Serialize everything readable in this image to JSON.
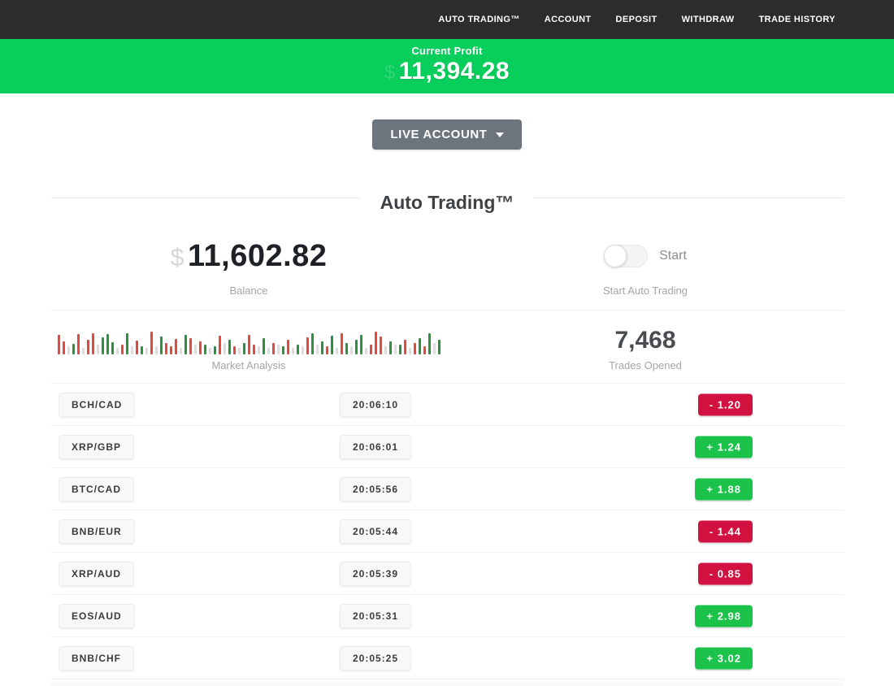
{
  "nav": {
    "items": [
      {
        "id": "auto-trading",
        "label": "AUTO TRADING™"
      },
      {
        "id": "account",
        "label": "ACCOUNT"
      },
      {
        "id": "deposit",
        "label": "DEPOSIT"
      },
      {
        "id": "withdraw",
        "label": "WITHDRAW"
      },
      {
        "id": "trade-history",
        "label": "TRADE HISTORY"
      }
    ]
  },
  "profit_banner": {
    "label": "Current Profit",
    "value": "11,394.28",
    "faint_symbol": "$",
    "bg_color": "#08ce5b"
  },
  "account_button": {
    "label": "LIVE ACCOUNT"
  },
  "section": {
    "title": "Auto Trading™"
  },
  "stats": {
    "balance": {
      "value": "11,602.82",
      "faint_symbol": "$",
      "label": "Balance"
    },
    "auto_trading": {
      "toggle_label": "Start",
      "label": "Start Auto Trading",
      "toggle_on": false
    },
    "market_analysis": {
      "label": "Market Analysis"
    },
    "trades_opened": {
      "value": "7,468",
      "label": "Trades Opened"
    }
  },
  "trades": [
    {
      "pair": "BCH/CAD",
      "time": "20:06:10",
      "result": "-  1.20",
      "direction": "loss"
    },
    {
      "pair": "XRP/GBP",
      "time": "20:06:01",
      "result": "+  1.24",
      "direction": "gain"
    },
    {
      "pair": "BTC/CAD",
      "time": "20:05:56",
      "result": "+  1.88",
      "direction": "gain"
    },
    {
      "pair": "BNB/EUR",
      "time": "20:05:44",
      "result": "-  1.44",
      "direction": "loss"
    },
    {
      "pair": "XRP/AUD",
      "time": "20:05:39",
      "result": "-  0.85",
      "direction": "loss"
    },
    {
      "pair": "EOS/AUD",
      "time": "20:05:31",
      "result": "+  2.98",
      "direction": "gain"
    },
    {
      "pair": "BNB/CHF",
      "time": "20:05:25",
      "result": "+  3.02",
      "direction": "gain"
    }
  ],
  "chart_data": {
    "type": "bar",
    "title": "Market Analysis",
    "description": "decorative candlestick-style activity strip, no axes",
    "color_legend": {
      "r": "#e04a3f",
      "g": "#2e9140",
      "n": "#dcdcdc"
    },
    "height_range": [
      8,
      28
    ],
    "bars": [
      [
        "r",
        24
      ],
      [
        "r",
        16
      ],
      [
        "n",
        10
      ],
      [
        "g",
        13
      ],
      [
        "r",
        25
      ],
      [
        "n",
        8
      ],
      [
        "r",
        18
      ],
      [
        "r",
        26
      ],
      [
        "n",
        12
      ],
      [
        "g",
        21
      ],
      [
        "g",
        25
      ],
      [
        "g",
        15
      ],
      [
        "n",
        8
      ],
      [
        "r",
        12
      ],
      [
        "g",
        26
      ],
      [
        "n",
        10
      ],
      [
        "r",
        17
      ],
      [
        "g",
        10
      ],
      [
        "n",
        8
      ],
      [
        "r",
        28
      ],
      [
        "n",
        10
      ],
      [
        "g",
        22
      ],
      [
        "r",
        14
      ],
      [
        "r",
        10
      ],
      [
        "r",
        19
      ],
      [
        "n",
        8
      ],
      [
        "g",
        24
      ],
      [
        "r",
        20
      ],
      [
        "n",
        12
      ],
      [
        "r",
        16
      ],
      [
        "g",
        12
      ],
      [
        "n",
        8
      ],
      [
        "g",
        10
      ],
      [
        "r",
        23
      ],
      [
        "n",
        14
      ],
      [
        "g",
        18
      ],
      [
        "r",
        10
      ],
      [
        "n",
        8
      ],
      [
        "g",
        14
      ],
      [
        "r",
        24
      ],
      [
        "r",
        12
      ],
      [
        "n",
        10
      ],
      [
        "g",
        20
      ],
      [
        "n",
        8
      ],
      [
        "r",
        14
      ],
      [
        "n",
        12
      ],
      [
        "g",
        10
      ],
      [
        "r",
        18
      ],
      [
        "n",
        8
      ],
      [
        "g",
        12
      ],
      [
        "n",
        10
      ],
      [
        "r",
        21
      ],
      [
        "g",
        26
      ],
      [
        "n",
        12
      ],
      [
        "g",
        16
      ],
      [
        "r",
        10
      ],
      [
        "g",
        23
      ],
      [
        "n",
        8
      ],
      [
        "r",
        26
      ],
      [
        "g",
        14
      ],
      [
        "n",
        10
      ],
      [
        "g",
        18
      ],
      [
        "g",
        24
      ],
      [
        "n",
        8
      ],
      [
        "r",
        12
      ],
      [
        "r",
        28
      ],
      [
        "r",
        22
      ],
      [
        "n",
        10
      ],
      [
        "g",
        16
      ],
      [
        "n",
        12
      ],
      [
        "g",
        12
      ],
      [
        "r",
        18
      ],
      [
        "n",
        8
      ],
      [
        "r",
        14
      ],
      [
        "g",
        20
      ],
      [
        "r",
        10
      ],
      [
        "g",
        26
      ],
      [
        "n",
        14
      ],
      [
        "g",
        18
      ]
    ]
  },
  "colors": {
    "nav_bg": "#2d2c2c",
    "banner_green": "#08ce5b",
    "gain_green": "#1cc34a",
    "loss_red": "#d11140",
    "button_gray": "#6c757d"
  }
}
